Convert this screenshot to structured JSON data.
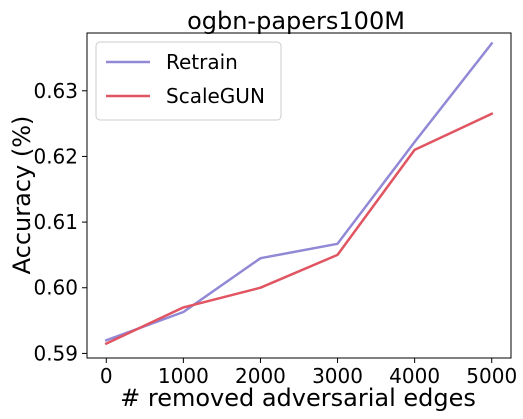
{
  "chart_data": {
    "type": "line",
    "title": "ogbn-papers100M",
    "xlabel": "# removed adversarial edges",
    "ylabel": "Accuracy (%)",
    "x": [
      0,
      1000,
      2000,
      3000,
      4000,
      5000
    ],
    "xticks": [
      0,
      1000,
      2000,
      3000,
      4000,
      5000
    ],
    "yticks": [
      0.59,
      0.6,
      0.61,
      0.62,
      0.63
    ],
    "ytick_labels": [
      "0.59",
      "0.60",
      "0.61",
      "0.62",
      "0.63"
    ],
    "xlim": [
      -250,
      5250
    ],
    "ylim": [
      0.5893,
      0.6388
    ],
    "grid": false,
    "legend_position": "top-left",
    "series": [
      {
        "name": "Retrain",
        "color": "#9189d6",
        "values": [
          0.592,
          0.5963,
          0.6045,
          0.6067,
          0.6222,
          0.6372
        ]
      },
      {
        "name": "ScaleGUN",
        "color": "#e05561",
        "values": [
          0.5915,
          0.597,
          0.6,
          0.605,
          0.621,
          0.6265
        ]
      }
    ]
  }
}
